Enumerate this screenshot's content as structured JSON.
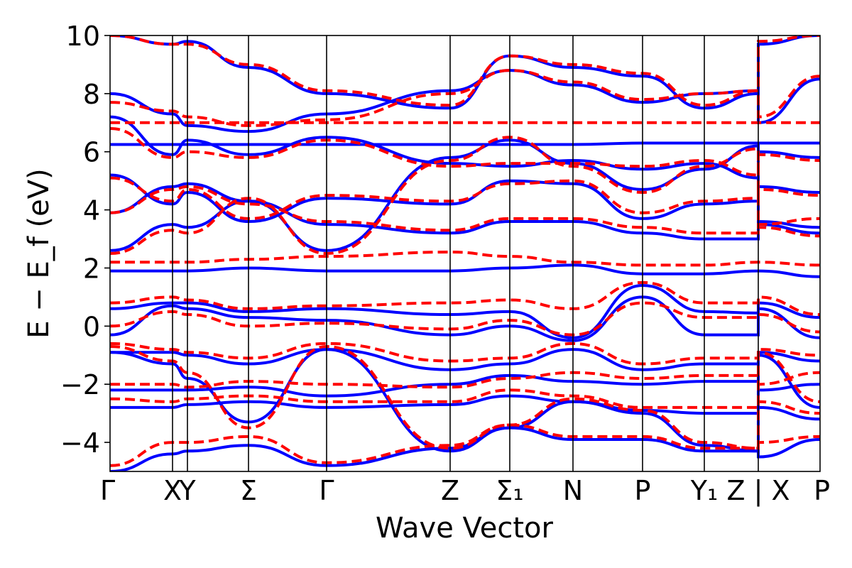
{
  "chart_data": {
    "type": "line",
    "title": "",
    "xlabel": "Wave Vector",
    "ylabel": "E − E_f (eV)",
    "ylim": [
      -5,
      10
    ],
    "yticks": [
      -4,
      -2,
      0,
      2,
      4,
      6,
      8,
      10
    ],
    "ytick_labels": [
      "−4",
      "−2",
      "0",
      "2",
      "4",
      "6",
      "8",
      "10"
    ],
    "xlim": [
      0,
      1
    ],
    "kpoints": [
      {
        "label": "Γ",
        "x": 0.0
      },
      {
        "label": "X",
        "x": 0.088
      },
      {
        "label": "Y",
        "x": 0.109
      },
      {
        "label": "Σ",
        "x": 0.195
      },
      {
        "label": "Γ",
        "x": 0.305
      },
      {
        "label": "Z",
        "x": 0.479
      },
      {
        "label": "Σ₁",
        "x": 0.563
      },
      {
        "label": "N",
        "x": 0.652
      },
      {
        "label": "P",
        "x": 0.75
      },
      {
        "label": "Y₁",
        "x": 0.837
      },
      {
        "label": "Z | X",
        "x": 0.913
      },
      {
        "label": "P",
        "x": 1.0
      }
    ],
    "colors": {
      "solid": "#0000ff",
      "dashed": "#ff0000"
    },
    "series": [
      {
        "style": "solid",
        "x": [
          0,
          0.088,
          0.109,
          0.195,
          0.305,
          0.479,
          0.563,
          0.652,
          0.75,
          0.837,
          0.913,
          0.913,
          1.0
        ],
        "y": [
          6.25,
          6.25,
          6.25,
          6.25,
          6.25,
          6.25,
          6.25,
          6.25,
          6.3,
          6.3,
          6.3,
          6.3,
          6.3
        ]
      },
      {
        "style": "dashed",
        "x": [
          0,
          0.088,
          0.109,
          0.195,
          0.305,
          0.479,
          0.563,
          0.652,
          0.75,
          0.837,
          0.913,
          0.913,
          1.0
        ],
        "y": [
          7.0,
          7.0,
          7.0,
          7.0,
          7.0,
          7.0,
          7.0,
          7.0,
          7.0,
          7.0,
          7.0,
          7.0,
          7.0
        ]
      },
      {
        "style": "solid",
        "x": [
          0,
          0.088,
          0.109,
          0.195,
          0.305,
          0.479,
          0.563,
          0.652,
          0.75,
          0.837,
          0.913,
          0.913,
          1.0
        ],
        "y": [
          1.9,
          1.9,
          1.9,
          2.0,
          1.9,
          1.9,
          2.0,
          2.1,
          1.8,
          1.8,
          1.9,
          1.9,
          1.7
        ]
      },
      {
        "style": "dashed",
        "x": [
          0,
          0.088,
          0.109,
          0.195,
          0.305,
          0.479,
          0.563,
          0.652,
          0.75,
          0.837,
          0.913,
          0.913,
          1.0
        ],
        "y": [
          2.2,
          2.2,
          2.2,
          2.3,
          2.4,
          2.55,
          2.4,
          2.2,
          2.1,
          2.1,
          2.2,
          2.2,
          2.1
        ]
      },
      {
        "style": "solid",
        "x": [
          0,
          0.088,
          0.109,
          0.195,
          0.305,
          0.479,
          0.563,
          0.652,
          0.75,
          0.837,
          0.913,
          0.913,
          1.0
        ],
        "y": [
          0.6,
          0.8,
          0.8,
          0.5,
          0.6,
          0.4,
          0.5,
          -0.4,
          1.4,
          0.5,
          0.45,
          0.8,
          0.3
        ]
      },
      {
        "style": "dashed",
        "x": [
          0,
          0.088,
          0.109,
          0.195,
          0.305,
          0.479,
          0.563,
          0.652,
          0.75,
          0.837,
          0.913,
          0.913,
          1.0
        ],
        "y": [
          0.8,
          1.0,
          0.9,
          0.6,
          0.7,
          0.8,
          0.9,
          0.6,
          1.5,
          0.8,
          0.8,
          1.0,
          0.4
        ]
      },
      {
        "style": "solid",
        "x": [
          0,
          0.088,
          0.109,
          0.195,
          0.305,
          0.479,
          0.563,
          0.652,
          0.75,
          0.837,
          0.913,
          0.913,
          1.0
        ],
        "y": [
          -0.3,
          0.7,
          0.6,
          0.3,
          0.2,
          -0.3,
          0.0,
          -0.5,
          1.0,
          -0.3,
          -0.3,
          0.6,
          -0.4
        ]
      },
      {
        "style": "dashed",
        "x": [
          0,
          0.088,
          0.109,
          0.195,
          0.305,
          0.479,
          0.563,
          0.652,
          0.75,
          0.837,
          0.913,
          0.913,
          1.0
        ],
        "y": [
          0.0,
          0.5,
          0.4,
          0.0,
          0.1,
          -0.1,
          0.2,
          -0.3,
          0.8,
          0.3,
          0.3,
          0.4,
          -0.2
        ]
      },
      {
        "style": "solid",
        "x": [
          0,
          0.088,
          0.109,
          0.195,
          0.305,
          0.479,
          0.563,
          0.652,
          0.75,
          0.837,
          0.913,
          0.913,
          1.0
        ],
        "y": [
          -0.9,
          -0.9,
          -1.0,
          -1.3,
          -0.8,
          -1.5,
          -1.3,
          -0.8,
          -1.5,
          -1.3,
          -1.3,
          -0.9,
          -1.2
        ]
      },
      {
        "style": "dashed",
        "x": [
          0,
          0.088,
          0.109,
          0.195,
          0.305,
          0.479,
          0.563,
          0.652,
          0.75,
          0.837,
          0.913,
          0.913,
          1.0
        ],
        "y": [
          -0.6,
          -0.8,
          -0.9,
          -1.1,
          -0.6,
          -1.2,
          -1.1,
          -0.6,
          -1.3,
          -1.1,
          -1.1,
          -0.8,
          -1.0
        ]
      },
      {
        "style": "solid",
        "x": [
          0,
          0.088,
          0.109,
          0.195,
          0.305,
          0.479,
          0.563,
          0.652,
          0.75,
          0.837,
          0.913,
          0.913,
          1.0
        ],
        "y": [
          -2.2,
          -2.2,
          -2.2,
          -2.1,
          -2.4,
          -2.0,
          -1.7,
          -1.9,
          -2.0,
          -1.9,
          -1.9,
          -2.2,
          -2.0
        ]
      },
      {
        "style": "dashed",
        "x": [
          0,
          0.088,
          0.109,
          0.195,
          0.305,
          0.479,
          0.563,
          0.652,
          0.75,
          0.837,
          0.913,
          0.913,
          1.0
        ],
        "y": [
          -2.0,
          -2.0,
          -2.1,
          -1.9,
          -2.0,
          -2.1,
          -1.8,
          -1.6,
          -1.8,
          -1.7,
          -1.7,
          -2.0,
          -1.6
        ]
      },
      {
        "style": "solid",
        "x": [
          0,
          0.088,
          0.109,
          0.195,
          0.305,
          0.479,
          0.563,
          0.652,
          0.75,
          0.837,
          0.913,
          0.913,
          1.0
        ],
        "y": [
          -2.8,
          -2.8,
          -2.7,
          -2.6,
          -2.8,
          -2.7,
          -2.4,
          -2.6,
          -2.9,
          -3.0,
          -3.0,
          -2.8,
          -3.2
        ]
      },
      {
        "style": "dashed",
        "x": [
          0,
          0.088,
          0.109,
          0.195,
          0.305,
          0.479,
          0.563,
          0.652,
          0.75,
          0.837,
          0.913,
          0.913,
          1.0
        ],
        "y": [
          -2.5,
          -2.6,
          -2.5,
          -2.4,
          -2.6,
          -2.6,
          -2.2,
          -2.4,
          -2.8,
          -2.8,
          -2.8,
          -2.6,
          -3.0
        ]
      },
      {
        "style": "solid",
        "x": [
          0,
          0.088,
          0.109,
          0.195,
          0.305,
          0.479,
          0.563,
          0.652,
          0.75,
          0.837,
          0.913,
          0.913,
          1.0
        ],
        "y": [
          2.6,
          3.5,
          3.4,
          4.3,
          2.6,
          5.8,
          6.4,
          5.6,
          4.7,
          5.4,
          6.2,
          3.5,
          3.2
        ]
      },
      {
        "style": "dashed",
        "x": [
          0,
          0.088,
          0.109,
          0.195,
          0.305,
          0.479,
          0.563,
          0.652,
          0.75,
          0.837,
          0.913,
          0.913,
          1.0
        ],
        "y": [
          2.5,
          3.3,
          3.2,
          4.4,
          2.5,
          5.7,
          6.5,
          5.5,
          4.6,
          5.5,
          6.1,
          3.4,
          3.1
        ]
      },
      {
        "style": "solid",
        "x": [
          0,
          0.088,
          0.109,
          0.195,
          0.305,
          0.479,
          0.563,
          0.652,
          0.75,
          0.837,
          0.913,
          0.913,
          1.0
        ],
        "y": [
          3.9,
          4.8,
          4.9,
          4.3,
          3.5,
          3.2,
          3.6,
          3.6,
          3.2,
          3.0,
          3.0,
          3.6,
          3.4
        ]
      },
      {
        "style": "dashed",
        "x": [
          0,
          0.088,
          0.109,
          0.195,
          0.305,
          0.479,
          0.563,
          0.652,
          0.75,
          0.837,
          0.913,
          0.913,
          1.0
        ],
        "y": [
          3.9,
          4.7,
          4.8,
          4.2,
          3.6,
          3.3,
          3.7,
          3.7,
          3.4,
          3.2,
          3.2,
          3.5,
          3.7
        ]
      },
      {
        "style": "solid",
        "x": [
          0,
          0.088,
          0.109,
          0.195,
          0.305,
          0.479,
          0.563,
          0.652,
          0.75,
          0.837,
          0.913,
          0.913,
          1.0
        ],
        "y": [
          5.2,
          4.2,
          4.6,
          3.6,
          4.4,
          4.2,
          5.0,
          4.9,
          3.7,
          4.2,
          4.3,
          4.8,
          4.6
        ]
      },
      {
        "style": "dashed",
        "x": [
          0,
          0.088,
          0.109,
          0.195,
          0.305,
          0.479,
          0.563,
          0.652,
          0.75,
          0.837,
          0.913,
          0.913,
          1.0
        ],
        "y": [
          5.1,
          4.3,
          4.7,
          3.7,
          4.5,
          4.3,
          4.9,
          5.0,
          3.9,
          4.3,
          4.4,
          4.7,
          4.5
        ]
      },
      {
        "style": "solid",
        "x": [
          0,
          0.088,
          0.109,
          0.195,
          0.305,
          0.479,
          0.563,
          0.652,
          0.75,
          0.837,
          0.913,
          0.913,
          1.0
        ],
        "y": [
          7.2,
          5.9,
          6.4,
          5.9,
          6.5,
          5.6,
          5.5,
          5.7,
          5.4,
          5.6,
          5.1,
          6.0,
          5.8
        ]
      },
      {
        "style": "dashed",
        "x": [
          0,
          0.088,
          0.109,
          0.195,
          0.305,
          0.479,
          0.563,
          0.652,
          0.75,
          0.837,
          0.913,
          0.913,
          1.0
        ],
        "y": [
          6.8,
          5.8,
          6.0,
          5.8,
          6.4,
          5.5,
          5.6,
          5.6,
          5.5,
          5.7,
          5.2,
          5.9,
          5.7
        ]
      },
      {
        "style": "solid",
        "x": [
          0,
          0.088,
          0.109,
          0.195,
          0.305,
          0.479,
          0.563,
          0.652,
          0.75,
          0.837,
          0.913,
          0.913,
          1.0
        ],
        "y": [
          8.0,
          7.3,
          6.9,
          6.7,
          7.3,
          8.1,
          8.8,
          8.3,
          7.7,
          8.0,
          8.1,
          7.0,
          8.5
        ]
      },
      {
        "style": "dashed",
        "x": [
          0,
          0.088,
          0.109,
          0.195,
          0.305,
          0.479,
          0.563,
          0.652,
          0.75,
          0.837,
          0.913,
          0.913,
          1.0
        ],
        "y": [
          7.7,
          7.4,
          7.2,
          6.9,
          7.1,
          8.0,
          8.8,
          8.4,
          7.8,
          8.0,
          8.1,
          7.2,
          8.6
        ]
      },
      {
        "style": "solid",
        "x": [
          0,
          0.088,
          0.109,
          0.195,
          0.305,
          0.479,
          0.563,
          0.652,
          0.75,
          0.837,
          0.913,
          0.913,
          1.0
        ],
        "y": [
          10.0,
          9.7,
          9.8,
          8.9,
          8.0,
          7.5,
          9.3,
          8.9,
          8.6,
          7.5,
          8.0,
          9.7,
          10.0
        ]
      },
      {
        "style": "dashed",
        "x": [
          0,
          0.088,
          0.109,
          0.195,
          0.305,
          0.479,
          0.563,
          0.652,
          0.75,
          0.837,
          0.913,
          0.913,
          1.0
        ],
        "y": [
          10.0,
          9.7,
          9.7,
          9.0,
          8.1,
          7.6,
          9.3,
          9.0,
          8.7,
          7.6,
          8.1,
          9.8,
          10.0
        ]
      },
      {
        "style": "solid",
        "x": [
          0,
          0.088,
          0.109,
          0.195,
          0.305,
          0.479,
          0.563,
          0.652,
          0.75,
          0.837,
          0.913,
          0.913,
          1.0
        ],
        "y": [
          -5.0,
          -4.4,
          -4.3,
          -4.1,
          -4.8,
          -4.2,
          -3.5,
          -3.9,
          -3.9,
          -4.3,
          -4.3,
          -4.5,
          -3.9
        ]
      },
      {
        "style": "dashed",
        "x": [
          0,
          0.088,
          0.109,
          0.195,
          0.305,
          0.479,
          0.563,
          0.652,
          0.75,
          0.837,
          0.913,
          0.913,
          1.0
        ],
        "y": [
          -4.8,
          -4.0,
          -4.0,
          -3.8,
          -4.7,
          -4.1,
          -3.4,
          -3.8,
          -3.8,
          -4.2,
          -4.2,
          -4.0,
          -3.8
        ]
      },
      {
        "style": "solid",
        "x": [
          0,
          0.088,
          0.109,
          0.195,
          0.305,
          0.479,
          0.563,
          0.652,
          0.75,
          0.837,
          0.913,
          0.913,
          1.0
        ],
        "y": [
          -0.9,
          -1.3,
          -1.8,
          -3.3,
          -0.8,
          -4.3,
          -3.5,
          -2.6,
          -3.0,
          -4.1,
          -4.3,
          -1.0,
          -2.8
        ]
      },
      {
        "style": "dashed",
        "x": [
          0,
          0.088,
          0.109,
          0.195,
          0.305,
          0.479,
          0.563,
          0.652,
          0.75,
          0.837,
          0.913,
          0.913,
          1.0
        ],
        "y": [
          -0.7,
          -1.2,
          -1.6,
          -3.5,
          -0.7,
          -4.2,
          -3.4,
          -2.5,
          -2.9,
          -4.0,
          -4.2,
          -0.9,
          -2.6
        ]
      }
    ]
  }
}
